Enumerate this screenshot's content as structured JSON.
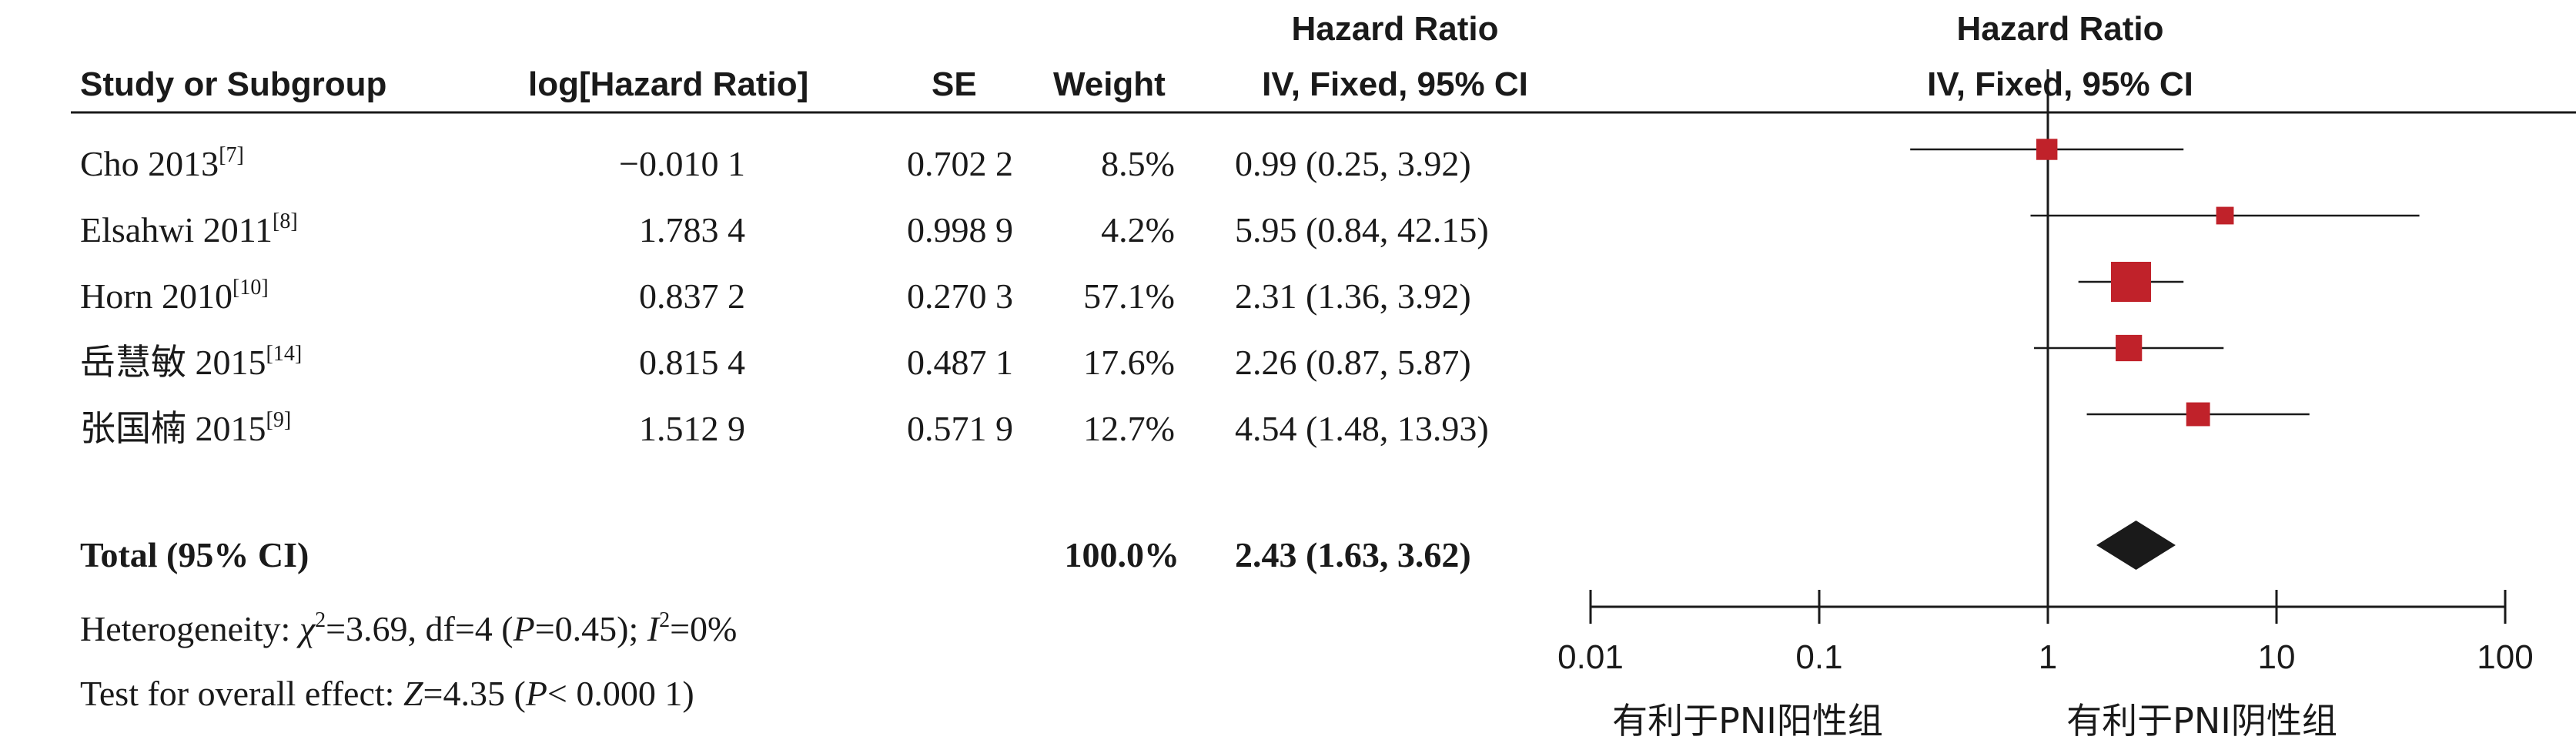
{
  "colors": {
    "marker": "#c0222a",
    "ink": "#1a1a1a"
  },
  "headers": {
    "study": "Study or Subgroup",
    "loghr": "log[Hazard Ratio]",
    "se": "SE",
    "weight": "Weight",
    "hr_title": "Hazard Ratio",
    "hr_method": "IV, Fixed, 95% CI",
    "plot_title": "Hazard Ratio",
    "plot_method": "IV, Fixed, 95% CI"
  },
  "rows": [
    {
      "study": "Cho 2013",
      "ref": "[7]",
      "loghr": "−0.010 1",
      "se": "0.702 2",
      "weight": "8.5%",
      "ci": "0.99 (0.25, 3.92)"
    },
    {
      "study": "Elsahwi 2011",
      "ref": "[8]",
      "loghr": "1.783 4",
      "se": "0.998 9",
      "weight": "4.2%",
      "ci": "5.95 (0.84, 42.15)"
    },
    {
      "study": "Horn 2010",
      "ref": "[10]",
      "loghr": "0.837 2",
      "se": "0.270 3",
      "weight": "57.1%",
      "ci": "2.31 (1.36, 3.92)"
    },
    {
      "study": "岳慧敏 2015",
      "ref": "[14]",
      "loghr": "0.815 4",
      "se": "0.487 1",
      "weight": "17.6%",
      "ci": "2.26 (0.87, 5.87)"
    },
    {
      "study": "张国楠 2015",
      "ref": "[9]",
      "loghr": "1.512 9",
      "se": "0.571 9",
      "weight": "12.7%",
      "ci": "4.54 (1.48, 13.93)"
    }
  ],
  "total": {
    "label": "Total (95% CI)",
    "weight": "100.0%",
    "ci": "2.43 (1.63, 3.62)"
  },
  "heterogeneity": {
    "prefix": "Heterogeneity: ",
    "chi_symbol": "χ",
    "chi_sup": "2",
    "chi_val": "=3.69, df=4 (",
    "p_sym": "P",
    "p_val": "=0.45); ",
    "i_sym": "I",
    "i_sup": "2",
    "i_val": "=0%"
  },
  "overall": {
    "prefix": "Test for overall effect: ",
    "z_sym": "Z",
    "z_val": "=4.35 (",
    "p_sym": "P",
    "p_val": "< 0.000 1)"
  },
  "axis": {
    "ticks": [
      "0.01",
      "0.1",
      "1",
      "10",
      "100"
    ],
    "favours_left": "有利于PNI阳性组",
    "favours_right": "有利于PNI阴性组"
  },
  "chart_data": {
    "type": "forest",
    "scale": "log",
    "xlim": [
      0.01,
      100
    ],
    "x_ticks": [
      0.01,
      0.1,
      1,
      10,
      100
    ],
    "reference_line": 1,
    "studies": [
      {
        "name": "Cho 2013",
        "hr": 0.99,
        "lower": 0.25,
        "upper": 3.92,
        "weight": 8.5
      },
      {
        "name": "Elsahwi 2011",
        "hr": 5.95,
        "lower": 0.84,
        "upper": 42.15,
        "weight": 4.2
      },
      {
        "name": "Horn 2010",
        "hr": 2.31,
        "lower": 1.36,
        "upper": 3.92,
        "weight": 57.1
      },
      {
        "name": "岳慧敏 2015",
        "hr": 2.26,
        "lower": 0.87,
        "upper": 5.87,
        "weight": 17.6
      },
      {
        "name": "张国楠 2015",
        "hr": 4.54,
        "lower": 1.48,
        "upper": 13.93,
        "weight": 12.7
      }
    ],
    "pooled": {
      "hr": 2.43,
      "lower": 1.63,
      "upper": 3.62
    }
  }
}
